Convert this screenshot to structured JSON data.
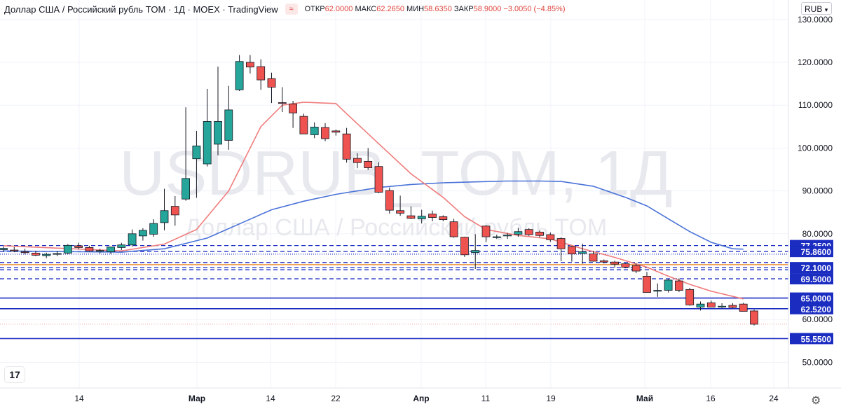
{
  "legend": {
    "title": "Доллар США / Российский рубль TOM · 1Д · MOEX · TradingView",
    "icon": "≈",
    "open_label": "ОТКР",
    "open": "62.0000",
    "high_label": "МАКС",
    "high": "62.2650",
    "low_label": "МИН",
    "low": "58.6350",
    "close_label": "ЗАКР",
    "close": "58.9000",
    "change": "−3.0050 (−4.85%)"
  },
  "currency": "RUB",
  "watermark": {
    "symbol": "USDRUB_TOM, 1Д",
    "name": "Доллар США / Российский рубль TOM"
  },
  "colors": {
    "up": "#26a69a",
    "down": "#ef5350",
    "ma_short": "#f07c7c",
    "ma_long": "#4a72d8",
    "level": "#1b2cc1"
  },
  "chart_data": {
    "type": "candlestick",
    "ylim": [
      45,
      132
    ],
    "y_ticks": [
      "130.0000",
      "120.0000",
      "110.0000",
      "100.0000",
      "90.0000",
      "80.0000",
      "60.0000",
      "50.0000"
    ],
    "x_tick_labels": [
      "14",
      "Мар",
      "14",
      "22",
      "Апр",
      "11",
      "19",
      "Май",
      "16",
      "24"
    ],
    "candles": [
      {
        "o": 76.3,
        "h": 77.0,
        "l": 75.8,
        "c": 76.6
      },
      {
        "o": 76.2,
        "h": 76.9,
        "l": 75.7,
        "c": 76.0
      },
      {
        "o": 75.8,
        "h": 76.5,
        "l": 75.2,
        "c": 75.6
      },
      {
        "o": 75.5,
        "h": 76.0,
        "l": 74.8,
        "c": 75.0
      },
      {
        "o": 74.9,
        "h": 75.6,
        "l": 74.3,
        "c": 75.2
      },
      {
        "o": 75.3,
        "h": 76.0,
        "l": 74.8,
        "c": 75.4
      },
      {
        "o": 75.5,
        "h": 77.6,
        "l": 75.2,
        "c": 77.3
      },
      {
        "o": 77.2,
        "h": 77.9,
        "l": 76.4,
        "c": 76.8
      },
      {
        "o": 76.8,
        "h": 77.2,
        "l": 75.8,
        "c": 76.0
      },
      {
        "o": 75.9,
        "h": 76.5,
        "l": 75.4,
        "c": 76.1
      },
      {
        "o": 75.8,
        "h": 77.0,
        "l": 75.3,
        "c": 76.9
      },
      {
        "o": 76.8,
        "h": 77.9,
        "l": 76.2,
        "c": 77.4
      },
      {
        "o": 77.4,
        "h": 81.0,
        "l": 77.0,
        "c": 80.0
      },
      {
        "o": 79.5,
        "h": 81.3,
        "l": 78.4,
        "c": 80.8
      },
      {
        "o": 79.9,
        "h": 83.4,
        "l": 79.3,
        "c": 82.4
      },
      {
        "o": 82.6,
        "h": 90.5,
        "l": 80.8,
        "c": 85.4
      },
      {
        "o": 86.4,
        "h": 88.8,
        "l": 81.9,
        "c": 84.4
      },
      {
        "o": 88.1,
        "h": 109.5,
        "l": 87.7,
        "c": 92.9
      },
      {
        "o": 97.5,
        "h": 104.0,
        "l": 88.4,
        "c": 100.5
      },
      {
        "o": 96.3,
        "h": 113.8,
        "l": 95.7,
        "c": 106.2
      },
      {
        "o": 100.9,
        "h": 119.0,
        "l": 98.3,
        "c": 106.2
      },
      {
        "o": 101.8,
        "h": 114.5,
        "l": 99.6,
        "c": 108.9
      },
      {
        "o": 113.6,
        "h": 121.7,
        "l": 113.3,
        "c": 120.2
      },
      {
        "o": 120.0,
        "h": 121.7,
        "l": 117.4,
        "c": 118.9
      },
      {
        "o": 119.0,
        "h": 120.7,
        "l": 113.6,
        "c": 115.9
      },
      {
        "o": 116.2,
        "h": 117.6,
        "l": 110.5,
        "c": 114.2
      },
      {
        "o": 110.6,
        "h": 114.2,
        "l": 108.4,
        "c": 110.5
      },
      {
        "o": 110.3,
        "h": 111.0,
        "l": 104.7,
        "c": 108.2
      },
      {
        "o": 107.4,
        "h": 108.0,
        "l": 103.3,
        "c": 103.3
      },
      {
        "o": 103.1,
        "h": 106.0,
        "l": 102.3,
        "c": 104.9
      },
      {
        "o": 104.8,
        "h": 105.8,
        "l": 101.6,
        "c": 102.2
      },
      {
        "o": 104.0,
        "h": 104.3,
        "l": 102.9,
        "c": 103.7
      },
      {
        "o": 103.3,
        "h": 104.7,
        "l": 96.6,
        "c": 97.4
      },
      {
        "o": 97.6,
        "h": 98.8,
        "l": 95.3,
        "c": 96.6
      },
      {
        "o": 96.9,
        "h": 100.0,
        "l": 94.9,
        "c": 95.4
      },
      {
        "o": 95.7,
        "h": 96.7,
        "l": 89.5,
        "c": 89.7
      },
      {
        "o": 90.1,
        "h": 90.8,
        "l": 84.7,
        "c": 85.5
      },
      {
        "o": 85.4,
        "h": 88.9,
        "l": 84.2,
        "c": 84.8
      },
      {
        "o": 84.2,
        "h": 86.4,
        "l": 83.4,
        "c": 83.6
      },
      {
        "o": 83.5,
        "h": 85.6,
        "l": 82.4,
        "c": 84.1
      },
      {
        "o": 84.6,
        "h": 85.4,
        "l": 82.9,
        "c": 83.8
      },
      {
        "o": 84.0,
        "h": 84.3,
        "l": 82.9,
        "c": 83.3
      },
      {
        "o": 82.8,
        "h": 83.5,
        "l": 79.1,
        "c": 79.3
      },
      {
        "o": 79.2,
        "h": 79.3,
        "l": 74.6,
        "c": 75.1
      },
      {
        "o": 75.6,
        "h": 79.9,
        "l": 71.8,
        "c": 76.1
      },
      {
        "o": 81.8,
        "h": 82.0,
        "l": 78.0,
        "c": 79.3
      },
      {
        "o": 79.1,
        "h": 79.8,
        "l": 78.8,
        "c": 79.3
      },
      {
        "o": 79.5,
        "h": 80.2,
        "l": 78.8,
        "c": 79.7
      },
      {
        "o": 79.9,
        "h": 81.4,
        "l": 79.3,
        "c": 80.5
      },
      {
        "o": 81.0,
        "h": 81.3,
        "l": 79.5,
        "c": 79.8
      },
      {
        "o": 80.4,
        "h": 80.8,
        "l": 79.2,
        "c": 79.6
      },
      {
        "o": 79.8,
        "h": 80.3,
        "l": 78.1,
        "c": 78.6
      },
      {
        "o": 78.9,
        "h": 79.2,
        "l": 73.6,
        "c": 76.5
      },
      {
        "o": 77.0,
        "h": 77.2,
        "l": 73.5,
        "c": 75.3
      },
      {
        "o": 75.4,
        "h": 77.7,
        "l": 73.0,
        "c": 75.8
      },
      {
        "o": 75.3,
        "h": 76.0,
        "l": 73.5,
        "c": 73.6
      },
      {
        "o": 73.7,
        "h": 74.0,
        "l": 73.1,
        "c": 73.4
      },
      {
        "o": 73.4,
        "h": 73.7,
        "l": 72.1,
        "c": 72.9
      },
      {
        "o": 73.0,
        "h": 73.1,
        "l": 72.0,
        "c": 72.2
      },
      {
        "o": 72.6,
        "h": 73.1,
        "l": 70.8,
        "c": 71.3
      },
      {
        "o": 70.1,
        "h": 71.1,
        "l": 66.3,
        "c": 66.3
      },
      {
        "o": 66.6,
        "h": 68.4,
        "l": 65.3,
        "c": 66.8
      },
      {
        "o": 66.8,
        "h": 69.4,
        "l": 66.3,
        "c": 69.2
      },
      {
        "o": 69.0,
        "h": 69.6,
        "l": 66.4,
        "c": 66.8
      },
      {
        "o": 67.0,
        "h": 67.4,
        "l": 63.2,
        "c": 63.4
      },
      {
        "o": 62.9,
        "h": 64.2,
        "l": 62.1,
        "c": 63.6
      },
      {
        "o": 63.9,
        "h": 64.4,
        "l": 62.9,
        "c": 62.9
      },
      {
        "o": 62.9,
        "h": 63.8,
        "l": 62.7,
        "c": 63.1
      },
      {
        "o": 63.3,
        "h": 63.8,
        "l": 62.6,
        "c": 62.8
      },
      {
        "o": 63.6,
        "h": 63.9,
        "l": 61.9,
        "c": 61.9
      },
      {
        "o": 62.0,
        "h": 62.3,
        "l": 58.6,
        "c": 58.9
      }
    ],
    "ma_short": [
      [
        0,
        77.2
      ],
      [
        11,
        76.0
      ],
      [
        15,
        77.6
      ],
      [
        18,
        81.0
      ],
      [
        21,
        90.0
      ],
      [
        24,
        105.0
      ],
      [
        26,
        110.0
      ],
      [
        28,
        110.7
      ],
      [
        31,
        110.4
      ],
      [
        32,
        108.0
      ],
      [
        35,
        101.0
      ],
      [
        38,
        94.0
      ],
      [
        41,
        88.5
      ],
      [
        43,
        84.0
      ],
      [
        45,
        81.0
      ],
      [
        48,
        79.6
      ],
      [
        51,
        78.8
      ],
      [
        54,
        76.5
      ],
      [
        57,
        74.5
      ],
      [
        60,
        72.2
      ],
      [
        62,
        70.1
      ],
      [
        64,
        68.2
      ],
      [
        66,
        66.6
      ],
      [
        69,
        64.8
      ]
    ],
    "ma_long": [
      [
        0,
        76.0
      ],
      [
        11,
        75.7
      ],
      [
        15,
        76.5
      ],
      [
        19,
        79.0
      ],
      [
        22,
        82.3
      ],
      [
        25,
        85.6
      ],
      [
        28,
        87.6
      ],
      [
        31,
        89.2
      ],
      [
        35,
        90.8
      ],
      [
        38,
        91.5
      ],
      [
        41,
        91.9
      ],
      [
        44,
        92.1
      ],
      [
        47,
        92.3
      ],
      [
        50,
        92.3
      ],
      [
        52,
        92.2
      ],
      [
        55,
        91.1
      ],
      [
        58,
        88.5
      ],
      [
        60,
        86.5
      ],
      [
        62,
        83.5
      ],
      [
        64,
        80.5
      ],
      [
        66,
        78.0
      ],
      [
        68,
        76.5
      ],
      [
        69,
        76.4
      ]
    ],
    "levels": [
      {
        "price": 77.25,
        "label": "77.2500",
        "style": "dashed"
      },
      {
        "price": 75.86,
        "label": "75.8600",
        "style": "dashed"
      },
      {
        "price": 75.25,
        "label": "",
        "style": "dotted"
      },
      {
        "price": 73.3,
        "label": "",
        "style": "dashed"
      },
      {
        "price": 72.8,
        "label": "",
        "style": "orange"
      },
      {
        "price": 72.1,
        "label": "72.1000",
        "style": "dashed"
      },
      {
        "price": 71.6,
        "label": "",
        "style": "dashed"
      },
      {
        "price": 69.5,
        "label": "69.5000",
        "style": "dashed"
      },
      {
        "price": 65.0,
        "label": "65.0000",
        "style": "solid"
      },
      {
        "price": 62.52,
        "label": "62.5200",
        "style": "solid"
      },
      {
        "price": 55.55,
        "label": "55.5500",
        "style": "solid"
      },
      {
        "price": 58.9,
        "label": "",
        "style": "red-dotted"
      }
    ]
  }
}
